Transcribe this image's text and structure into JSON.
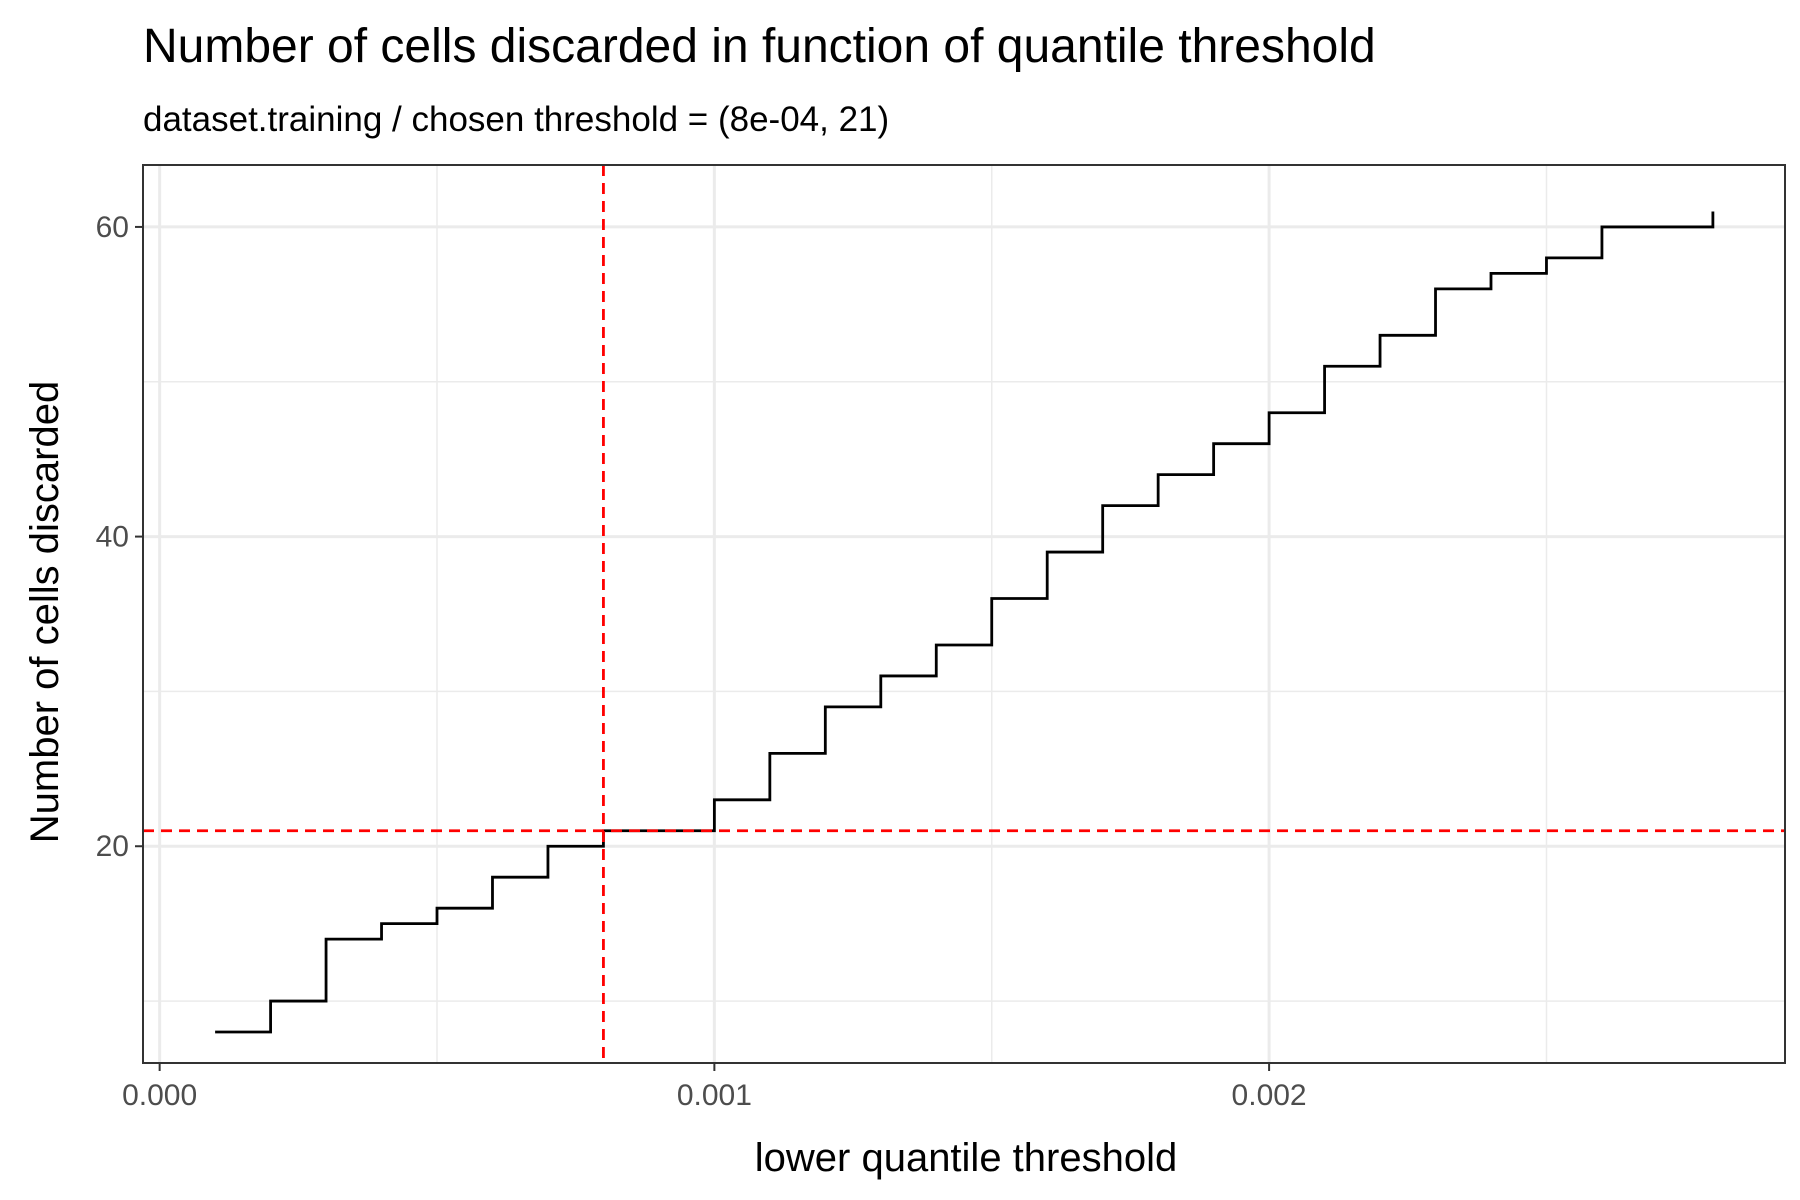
{
  "chart_data": {
    "type": "line",
    "step": true,
    "title": "Number of cells discarded in function of quantile threshold",
    "subtitle": "dataset.training / chosen threshold = (8e-04, 21)",
    "xlabel": "lower quantile threshold",
    "ylabel": "Number of cells discarded",
    "xlim": [
      -3e-05,
      0.00293
    ],
    "ylim": [
      6,
      64
    ],
    "x_ticks": [
      0,
      0.001,
      0.002
    ],
    "x_tick_labels": [
      "0.000",
      "0.001",
      "0.002"
    ],
    "x_minor_ticks": [
      0.0005,
      0.0015,
      0.0025
    ],
    "y_ticks": [
      20,
      40,
      60
    ],
    "y_tick_labels": [
      "20",
      "40",
      "60"
    ],
    "y_minor_ticks": [
      10,
      30,
      50
    ],
    "grid": true,
    "series": [
      {
        "color": "#000000",
        "x": [
          0.0001,
          0.0002,
          0.0003,
          0.0004,
          0.0005,
          0.0006,
          0.0007,
          0.0008,
          0.0009,
          0.001,
          0.0011,
          0.0012,
          0.0013,
          0.0014,
          0.0015,
          0.0016,
          0.0017,
          0.0018,
          0.0019,
          0.002,
          0.0021,
          0.0022,
          0.0023,
          0.0024,
          0.0025,
          0.0026,
          0.0027,
          0.0028
        ],
        "y": [
          8,
          10,
          14,
          15,
          16,
          18,
          20,
          21,
          21,
          23,
          26,
          29,
          31,
          33,
          36,
          39,
          42,
          44,
          46,
          48,
          51,
          53,
          56,
          57,
          58,
          60,
          60,
          61
        ]
      }
    ],
    "reference_lines": [
      {
        "orientation": "vertical",
        "value": 0.0008,
        "color": "#ff0000",
        "style": "dashed"
      },
      {
        "orientation": "horizontal",
        "value": 21,
        "color": "#ff0000",
        "style": "dashed"
      }
    ],
    "colors": {
      "grid": "#ebebeb",
      "panel_border": "#333333",
      "tick_label": "#4d4d4d"
    }
  }
}
